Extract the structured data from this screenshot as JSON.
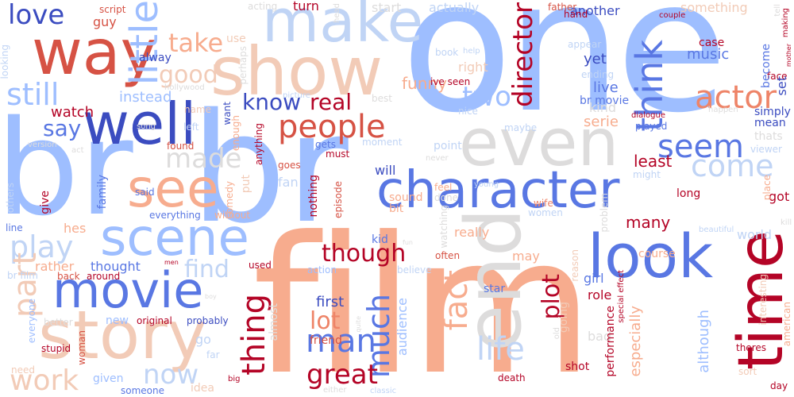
{
  "colors": {
    "dark_blue": "#3b4cc0",
    "blue": "#5977e3",
    "mid_blue": "#7b9ff9",
    "light_blue": "#9ebeff",
    "pale_blue": "#c0d4f5",
    "grey": "#dddcdc",
    "pale_peach": "#f2cbb7",
    "salmon": "#f7ac8e",
    "orange_red": "#ee8468",
    "red": "#d65244",
    "dark_red": "#b40426"
  },
  "words": {
    "one": "one",
    "film": "film",
    "br_big": "br",
    "br_left": "br",
    "character": "character",
    "show": "show",
    "make": "make",
    "even": "even",
    "way": "way",
    "story": "story",
    "movie": "movie",
    "scene": "scene",
    "well": "well",
    "see": "see",
    "end": "end",
    "look": "look",
    "time": "time",
    "little": "little",
    "love": "love",
    "still": "still",
    "take": "take",
    "good": "good",
    "people": "people",
    "know": "know",
    "real": "real",
    "made": "made",
    "say": "say",
    "seem": "seem",
    "come": "come",
    "think": "think",
    "actor": "actor",
    "director": "director",
    "two": "two",
    "watch": "watch",
    "instead": "instead",
    "play": "play",
    "part": "part",
    "thing": "thing",
    "man": "man",
    "much": "much",
    "fact": "fact",
    "life": "life",
    "plot": "plot",
    "though": "though",
    "great": "great",
    "lot": "lot",
    "work": "work",
    "now": "now",
    "find": "find",
    "first": "first",
    "many": "many",
    "least": "least",
    "serie": "serie",
    "music": "music",
    "live": "live",
    "yet": "yet",
    "another": "another",
    "turn": "turn",
    "actually": "actually",
    "start": "start",
    "script": "script",
    "guy": "guy",
    "always": "alway",
    "use": "use",
    "perhaps": "perhaps",
    "funny": "funny",
    "right": "right",
    "ive_seen": "ive seen",
    "br_movie": "br movie",
    "kind": "kind",
    "become": "become",
    "set": "set",
    "mean": "mean",
    "thats": "thats",
    "case": "case",
    "face": "face",
    "simply": "simply",
    "role": "role",
    "girl": "girl",
    "going": "going",
    "bad": "bad",
    "performance": "performance",
    "especially": "especially",
    "although": "although",
    "world": "world",
    "got": "got",
    "course": "course",
    "long": "long",
    "really": "really",
    "may": "may",
    "often": "often",
    "kid": "kid",
    "audience": "audience",
    "believe": "believe",
    "action": "action",
    "friend": "friend",
    "thought": "thought",
    "rather": "rather",
    "hes": "hes",
    "line": "line",
    "give": "give",
    "family": "family",
    "everything": "everything",
    "without": "without",
    "comedy": "comedy",
    "nothing": "nothing",
    "episode": "episode",
    "sound": "sound",
    "bit": "bit",
    "will": "will",
    "fan": "fan",
    "goes": "goes",
    "must": "must",
    "gets": "gets",
    "moment": "moment",
    "point": "point",
    "put": "put",
    "anything": "anything",
    "enough": "enough",
    "want": "want",
    "name": "name",
    "left": "left",
    "found": "found",
    "said": "said",
    "others": "others",
    "back": "back",
    "around": "around",
    "br_film": "br film",
    "used": "used",
    "almost": "almost",
    "original": "original",
    "probably": "probably",
    "new": "new",
    "better": "better",
    "everyone": "everyone",
    "woman": "woman",
    "need": "need",
    "stupid": "stupid",
    "given": "given",
    "someone": "someone",
    "idea": "idea",
    "go": "go",
    "far": "far",
    "big": "big",
    "either": "either",
    "classic": "classic",
    "death": "death",
    "star": "star",
    "old": "old",
    "shot": "shot",
    "special_effect": "special effect",
    "day": "day",
    "theres": "theres",
    "sort": "sort",
    "american": "american",
    "interesting": "interesting",
    "place": "place",
    "kill": "kill",
    "beautiful": "beautiful",
    "women": "women",
    "wife": "wife",
    "problem": "problem",
    "reason": "reason",
    "watching": "watching",
    "feel": "feel",
    "done": "done",
    "young": "young",
    "never": "never",
    "might": "might",
    "played": "played",
    "viewer": "viewer",
    "dialogue": "dialogue",
    "happen": "happen",
    "something": "something",
    "couple": "couple",
    "father": "father",
    "hand": "hand",
    "appear": "appear",
    "ending": "ending",
    "book": "book",
    "help": "help",
    "nice": "nice",
    "maybe": "maybe",
    "best": "best",
    "picture": "picture",
    "acting": "acting",
    "head": "head",
    "hollywood": "hollywood",
    "looking": "looking",
    "version": "version",
    "song": "song",
    "act": "act",
    "men": "men",
    "boy": "boy",
    "fun": "fun",
    "tell": "tell",
    "making": "making",
    "mother": "mother",
    "quite": "quite"
  }
}
